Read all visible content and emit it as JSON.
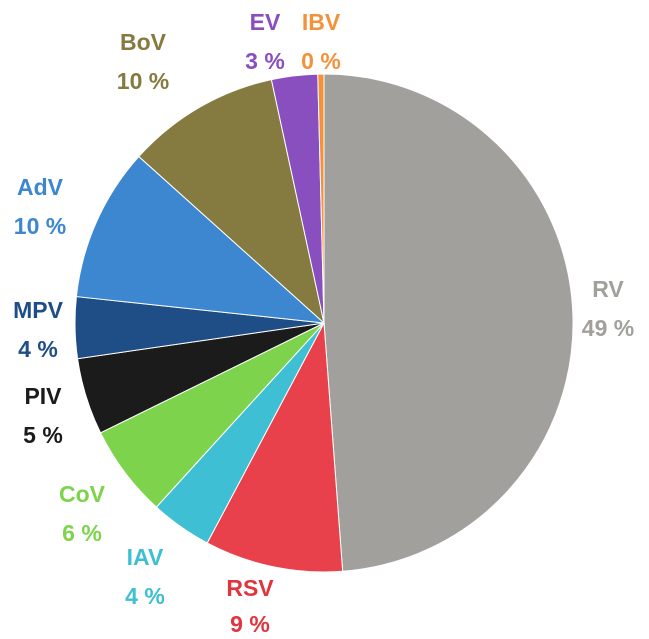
{
  "chart_data": {
    "type": "pie",
    "start_angle_deg": 0,
    "direction": "clockwise",
    "slices": [
      {
        "label": "RV",
        "value": 49,
        "value_text": "49 %",
        "color": "#a2a09c",
        "label_color": "#a2a09c"
      },
      {
        "label": "RSV",
        "value": 9,
        "value_text": "9 %",
        "color": "#e8414b",
        "label_color": "#e0353e"
      },
      {
        "label": "IAV",
        "value": 4,
        "value_text": "4 %",
        "color": "#3ebfd3",
        "label_color": "#3ebfd3"
      },
      {
        "label": "CoV",
        "value": 6,
        "value_text": "6 %",
        "color": "#7ed34d",
        "label_color": "#7ed34d"
      },
      {
        "label": "PIV",
        "value": 5,
        "value_text": "5 %",
        "color": "#1b1b1b",
        "label_color": "#1b1b1b"
      },
      {
        "label": "MPV",
        "value": 4,
        "value_text": "4 %",
        "color": "#1f4e87",
        "label_color": "#1f4e87"
      },
      {
        "label": "AdV",
        "value": 10,
        "value_text": "10 %",
        "color": "#3d86d0",
        "label_color": "#3d86d0"
      },
      {
        "label": "BoV",
        "value": 10,
        "value_text": "10 %",
        "color": "#857a3f",
        "label_color": "#857a3f"
      },
      {
        "label": "EV",
        "value": 3,
        "value_text": "3 %",
        "color": "#8a4fbf",
        "label_color": "#8a4fbf"
      },
      {
        "label": "IBV",
        "value": 0.4,
        "value_text": "0 %",
        "color": "#f4913b",
        "label_color": "#f4913b"
      }
    ]
  }
}
